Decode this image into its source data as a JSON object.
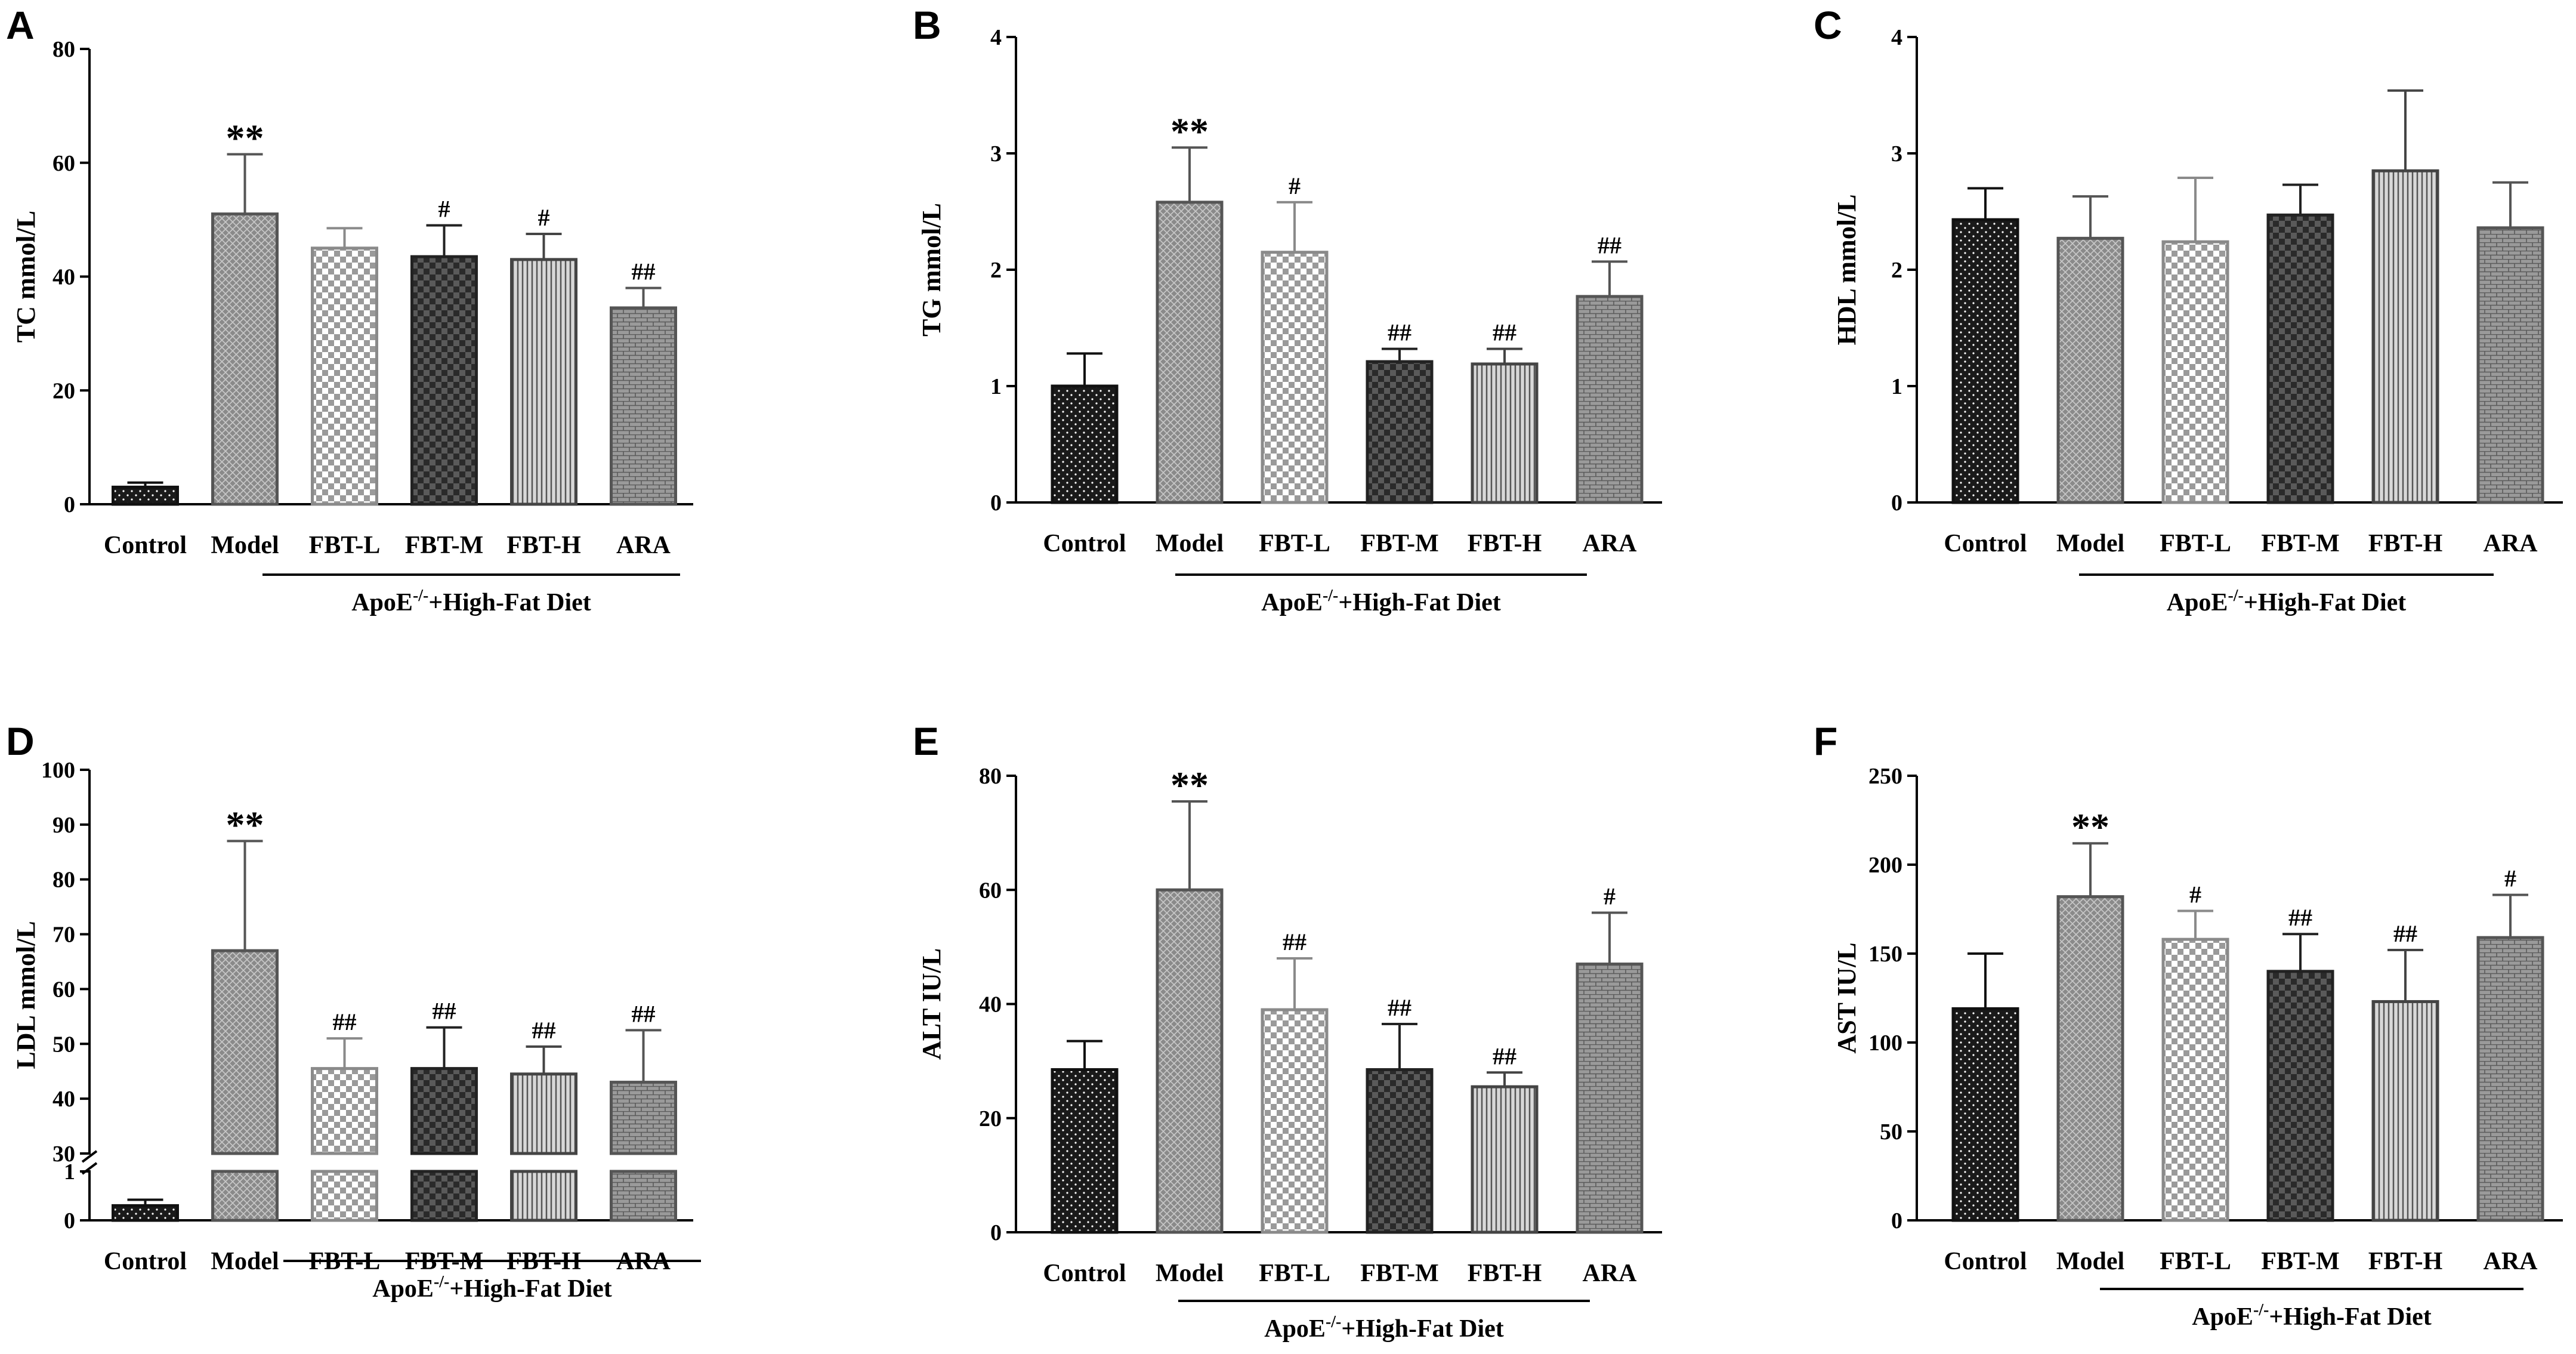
{
  "categories": [
    "Control",
    "Model",
    "FBT-L",
    "FBT-M",
    "FBT-H",
    "ARA"
  ],
  "group_label": "ApoE",
  "group_sup": "-/-",
  "group_suffix": "+High-Fat Diet",
  "chart_data": [
    {
      "panel": "A",
      "type": "bar",
      "ylabel": "TC mmol/L",
      "ylim": [
        0,
        80
      ],
      "ticks": [
        0,
        20,
        40,
        60,
        80
      ],
      "values": [
        3,
        51,
        45,
        43.5,
        43,
        34.5
      ],
      "errors": [
        0.8,
        10.5,
        3.5,
        5.5,
        4.5,
        3.5
      ],
      "annotations": [
        "",
        "**",
        "",
        "#",
        "#",
        "##"
      ]
    },
    {
      "panel": "B",
      "type": "bar",
      "ylabel": "TG mmol/L",
      "ylim": [
        0,
        4
      ],
      "ticks": [
        0,
        1,
        2,
        3,
        4
      ],
      "values": [
        1.0,
        2.58,
        2.15,
        1.21,
        1.19,
        1.77
      ],
      "errors": [
        0.28,
        0.47,
        0.43,
        0.11,
        0.13,
        0.3
      ],
      "annotations": [
        "",
        "**",
        "#",
        "##",
        "##",
        "##"
      ]
    },
    {
      "panel": "C",
      "type": "bar",
      "ylabel": "HDL mmol/L",
      "ylim": [
        0,
        4
      ],
      "ticks": [
        0,
        1,
        2,
        3,
        4
      ],
      "values": [
        2.43,
        2.27,
        2.24,
        2.47,
        2.85,
        2.36
      ],
      "errors": [
        0.27,
        0.36,
        0.55,
        0.26,
        0.69,
        0.39
      ],
      "annotations": [
        "",
        "",
        "",
        "",
        "",
        ""
      ]
    },
    {
      "panel": "D",
      "type": "bar",
      "ylabel": "LDL mmol/L",
      "ylim": [
        0,
        100
      ],
      "broken_axis": [
        1,
        30
      ],
      "ticks": [
        0,
        1,
        30,
        40,
        50,
        60,
        70,
        80,
        90,
        100
      ],
      "values": [
        0.3,
        67,
        45.5,
        45.5,
        44.5,
        43
      ],
      "errors": [
        0.12,
        20,
        5.5,
        7.5,
        5,
        9.5
      ],
      "annotations": [
        "",
        "**",
        "##",
        "##",
        "##",
        "##"
      ]
    },
    {
      "panel": "E",
      "type": "bar",
      "ylabel": "ALT IU/L",
      "ylim": [
        0,
        80
      ],
      "ticks": [
        0,
        20,
        40,
        60,
        80
      ],
      "values": [
        28.5,
        60,
        39,
        28.5,
        25.5,
        47
      ],
      "errors": [
        5,
        15.5,
        9,
        8,
        2.5,
        9
      ],
      "annotations": [
        "",
        "**",
        "##",
        "##",
        "##",
        "#"
      ]
    },
    {
      "panel": "F",
      "type": "bar",
      "ylabel": "AST IU/L",
      "ylim": [
        0,
        250
      ],
      "ticks": [
        0,
        50,
        100,
        150,
        200,
        250
      ],
      "values": [
        119,
        182,
        158,
        140,
        123,
        159
      ],
      "errors": [
        31,
        30,
        16,
        21,
        29,
        24
      ],
      "annotations": [
        "",
        "**",
        "#",
        "##",
        "##",
        "#"
      ]
    }
  ]
}
